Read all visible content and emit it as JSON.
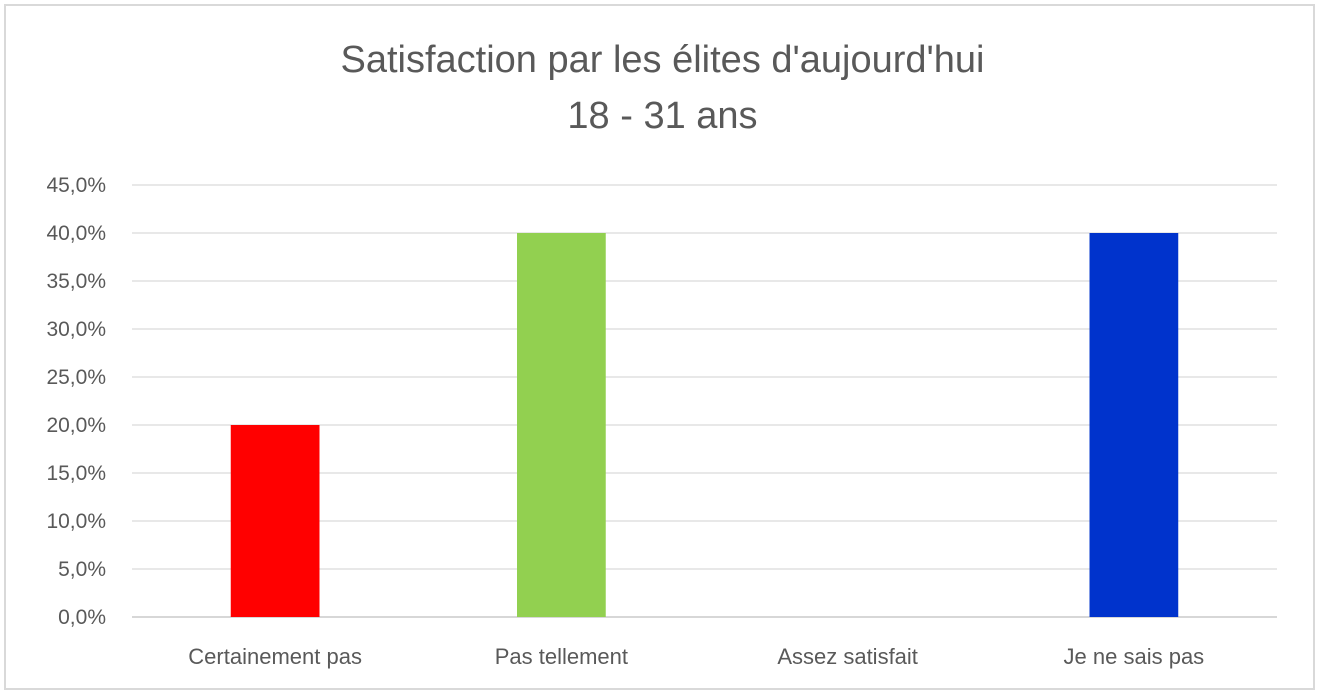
{
  "chart_data": {
    "type": "bar",
    "title": "Satisfaction par les élites d'aujourd'hui",
    "subtitle": "18 - 31 ans",
    "categories": [
      "Certainement pas",
      "Pas tellement",
      "Assez satisfait",
      "Je ne sais pas"
    ],
    "values": [
      0.2,
      0.4,
      0.0,
      0.4
    ],
    "colors": [
      "#ff0000",
      "#92d050",
      "#ffffff",
      "#0033cc"
    ],
    "ylim": [
      0,
      0.45
    ],
    "yticks": [
      "0,0%",
      "5,0%",
      "10,0%",
      "15,0%",
      "20,0%",
      "25,0%",
      "30,0%",
      "35,0%",
      "40,0%",
      "45,0%"
    ],
    "grid": true,
    "legend": "none"
  }
}
